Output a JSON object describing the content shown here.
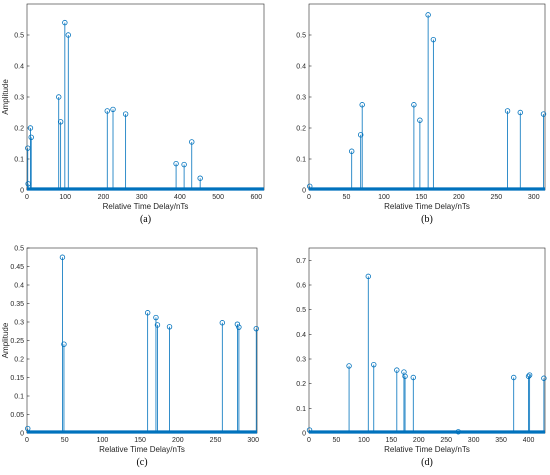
{
  "colors": {
    "stem": "#0072BD",
    "axis": "#262626"
  },
  "chart_data": [
    {
      "type": "stem",
      "caption": "(a)",
      "xlabel": "Relative Time Delay/nTs",
      "ylabel": "Amplitude",
      "xlim": [
        0,
        620
      ],
      "ylim": [
        0,
        0.6
      ],
      "xticks": [
        0,
        100,
        200,
        300,
        400,
        500,
        600
      ],
      "yticks": [
        0,
        0.1,
        0.2,
        0.3,
        0.4,
        0.5
      ],
      "points": [
        {
          "x": 2,
          "y": 0.135
        },
        {
          "x": 3,
          "y": 0.02
        },
        {
          "x": 9,
          "y": 0.2
        },
        {
          "x": 11,
          "y": 0.17
        },
        {
          "x": 83,
          "y": 0.3
        },
        {
          "x": 88,
          "y": 0.22
        },
        {
          "x": 99,
          "y": 0.54
        },
        {
          "x": 108,
          "y": 0.5
        },
        {
          "x": 210,
          "y": 0.255
        },
        {
          "x": 225,
          "y": 0.26
        },
        {
          "x": 258,
          "y": 0.245
        },
        {
          "x": 390,
          "y": 0.085
        },
        {
          "x": 411,
          "y": 0.082
        },
        {
          "x": 431,
          "y": 0.155
        },
        {
          "x": 453,
          "y": 0.038
        }
      ]
    },
    {
      "type": "stem",
      "caption": "(b)",
      "xlabel": "Relative Time Delay/nTs",
      "ylabel": "",
      "xlim": [
        0,
        315
      ],
      "ylim": [
        0,
        0.6
      ],
      "xticks": [
        0,
        50,
        100,
        150,
        200,
        250,
        300
      ],
      "yticks": [
        0,
        0.1,
        0.2,
        0.3,
        0.4,
        0.5
      ],
      "points": [
        {
          "x": 1,
          "y": 0.012
        },
        {
          "x": 57,
          "y": 0.125
        },
        {
          "x": 69,
          "y": 0.178
        },
        {
          "x": 71,
          "y": 0.275
        },
        {
          "x": 140,
          "y": 0.275
        },
        {
          "x": 148,
          "y": 0.225
        },
        {
          "x": 159,
          "y": 0.565
        },
        {
          "x": 166,
          "y": 0.485
        },
        {
          "x": 265,
          "y": 0.255
        },
        {
          "x": 282,
          "y": 0.25
        },
        {
          "x": 313,
          "y": 0.245
        }
      ]
    },
    {
      "type": "stem",
      "caption": "(c)",
      "xlabel": "Relative Time Delay/nTs",
      "ylabel": "Amplitude",
      "xlim": [
        0,
        305
      ],
      "ylim": [
        0,
        0.5
      ],
      "xticks": [
        0,
        50,
        100,
        150,
        200,
        250,
        300
      ],
      "yticks": [
        0,
        0.05,
        0.1,
        0.15,
        0.2,
        0.25,
        0.3,
        0.35,
        0.4,
        0.45,
        0.5
      ],
      "points": [
        {
          "x": 1,
          "y": 0.012
        },
        {
          "x": 47,
          "y": 0.475
        },
        {
          "x": 49,
          "y": 0.24
        },
        {
          "x": 160,
          "y": 0.325
        },
        {
          "x": 171,
          "y": 0.312
        },
        {
          "x": 173,
          "y": 0.292
        },
        {
          "x": 189,
          "y": 0.287
        },
        {
          "x": 259,
          "y": 0.298
        },
        {
          "x": 279,
          "y": 0.294
        },
        {
          "x": 281,
          "y": 0.286
        },
        {
          "x": 304,
          "y": 0.282
        }
      ]
    },
    {
      "type": "stem",
      "caption": "(d)",
      "xlabel": "Relative Time Delay/nTs",
      "ylabel": "",
      "xlim": [
        0,
        430
      ],
      "ylim": [
        0,
        0.75
      ],
      "xticks": [
        0,
        50,
        100,
        150,
        200,
        250,
        300,
        350,
        400
      ],
      "yticks": [
        0,
        0.1,
        0.2,
        0.3,
        0.4,
        0.5,
        0.6,
        0.7
      ],
      "points": [
        {
          "x": 1,
          "y": 0.012
        },
        {
          "x": 73,
          "y": 0.272
        },
        {
          "x": 108,
          "y": 0.635
        },
        {
          "x": 118,
          "y": 0.277
        },
        {
          "x": 160,
          "y": 0.255
        },
        {
          "x": 173,
          "y": 0.247
        },
        {
          "x": 175,
          "y": 0.23
        },
        {
          "x": 190,
          "y": 0.225
        },
        {
          "x": 272,
          "y": 0.005
        },
        {
          "x": 373,
          "y": 0.225
        },
        {
          "x": 400,
          "y": 0.23
        },
        {
          "x": 402,
          "y": 0.235
        },
        {
          "x": 428,
          "y": 0.222
        }
      ]
    }
  ]
}
